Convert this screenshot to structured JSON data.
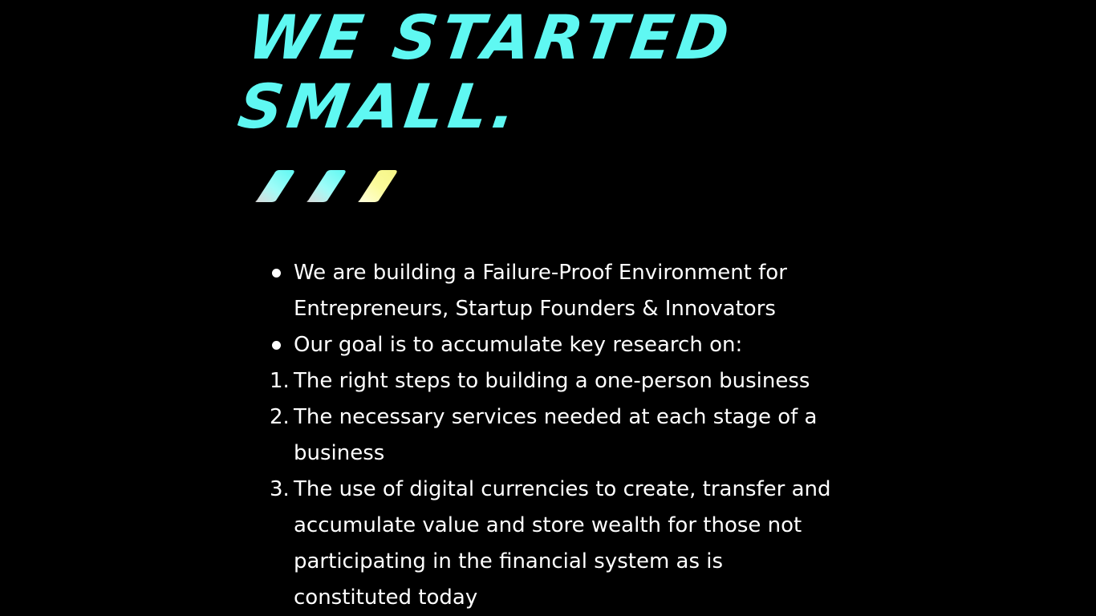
{
  "headline": {
    "line1": "WE STARTED",
    "line2": "SMALL."
  },
  "decor": {
    "colors": [
      "#5ff8f2",
      "#5ff8f2",
      "#f5f586"
    ],
    "icon": "slanted-parallelogram-stripes"
  },
  "bullets": [
    {
      "text": "We are building a Failure-Proof Environment for Entrepreneurs, Startup Founders & Innovators"
    },
    {
      "text": "Our goal is to accumulate key research on:"
    }
  ],
  "numbered": [
    {
      "num": "1.",
      "text": " The right steps to building a one-person business"
    },
    {
      "num": "2.",
      "text": " The necessary services needed at each stage of a business"
    },
    {
      "num": "3.",
      "text": " The use of digital currencies to create, transfer and accumulate value and store wealth for those not participating in the financial system as is constituted today"
    }
  ],
  "colors": {
    "background": "#000000",
    "headline": "#5ff8f2",
    "body_text": "#ffffff"
  }
}
